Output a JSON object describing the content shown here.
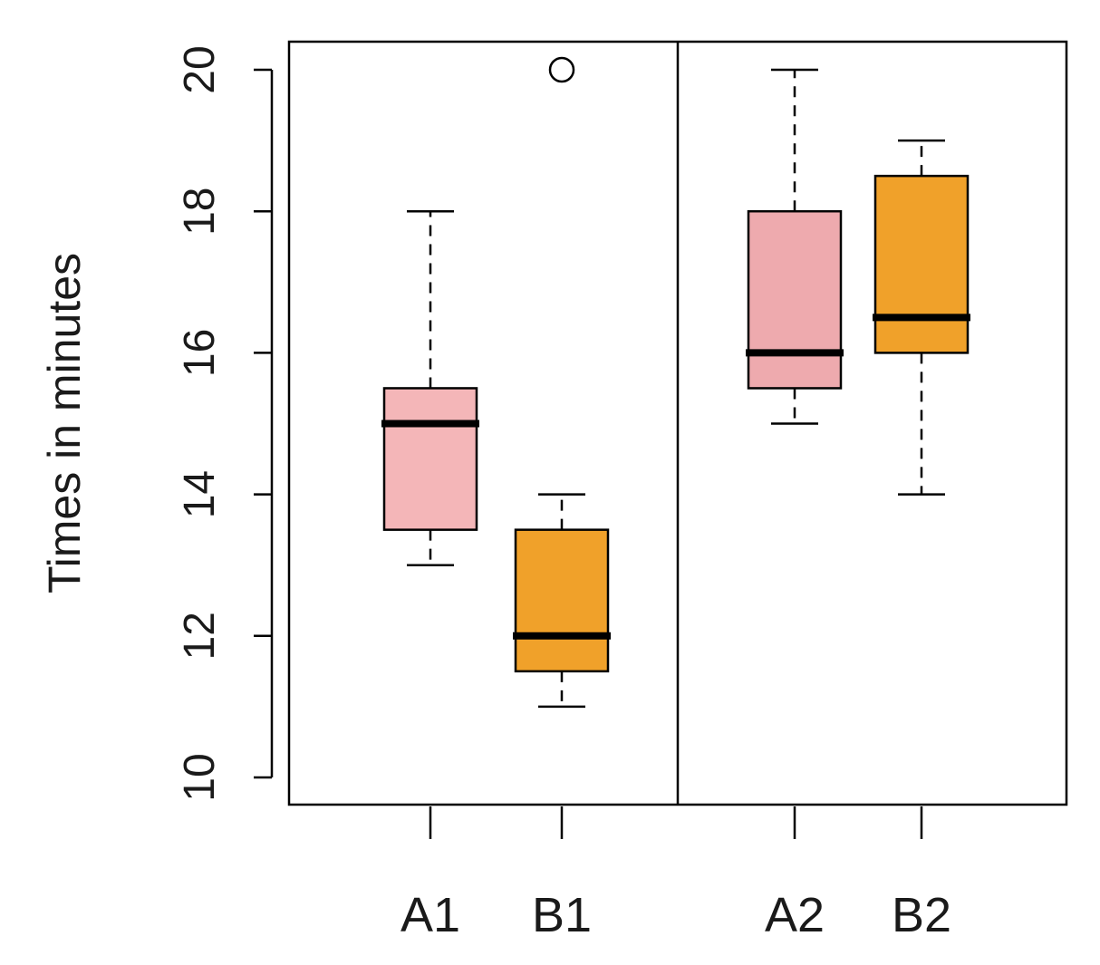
{
  "chart_data": {
    "type": "boxplot",
    "title": "",
    "xlabel": "",
    "ylabel": "Times in minutes",
    "ylim": [
      10,
      20
    ],
    "yticks": [
      10,
      12,
      14,
      16,
      18,
      20
    ],
    "ytick_labels": [
      "10",
      "12",
      "14",
      "16",
      "18",
      "20"
    ],
    "panels": [
      {
        "name": "panel-1",
        "categories": [
          "A1",
          "B1"
        ],
        "boxes": [
          {
            "label": "A1",
            "min": 13,
            "q1": 13.5,
            "median": 15,
            "q3": 15.5,
            "max": 18,
            "outliers": [],
            "color": "#f4b6b8"
          },
          {
            "label": "B1",
            "min": 11,
            "q1": 11.5,
            "median": 12,
            "q3": 13.5,
            "max": 14,
            "outliers": [
              20
            ],
            "color": "#f0a12a"
          }
        ]
      },
      {
        "name": "panel-2",
        "categories": [
          "A2",
          "B2"
        ],
        "boxes": [
          {
            "label": "A2",
            "min": 15,
            "q1": 15.5,
            "median": 16,
            "q3": 18,
            "max": 20,
            "outliers": [],
            "color": "#eeaaae"
          },
          {
            "label": "B2",
            "min": 14,
            "q1": 16,
            "median": 16.5,
            "q3": 18.5,
            "max": 19,
            "outliers": [],
            "color": "#f0a12a"
          }
        ]
      }
    ]
  }
}
